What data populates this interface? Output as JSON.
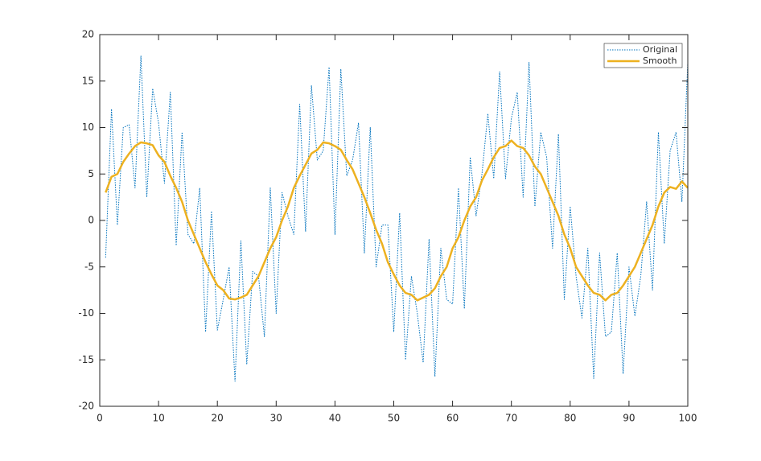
{
  "chart_data": {
    "type": "line",
    "x": [
      1,
      2,
      3,
      4,
      5,
      6,
      7,
      8,
      9,
      10,
      11,
      12,
      13,
      14,
      15,
      16,
      17,
      18,
      19,
      20,
      21,
      22,
      23,
      24,
      25,
      26,
      27,
      28,
      29,
      30,
      31,
      32,
      33,
      34,
      35,
      36,
      37,
      38,
      39,
      40,
      41,
      42,
      43,
      44,
      45,
      46,
      47,
      48,
      49,
      50,
      51,
      52,
      53,
      54,
      55,
      56,
      57,
      58,
      59,
      60,
      61,
      62,
      63,
      64,
      65,
      66,
      67,
      68,
      69,
      70,
      71,
      72,
      73,
      74,
      75,
      76,
      77,
      78,
      79,
      80,
      81,
      82,
      83,
      84,
      85,
      86,
      87,
      88,
      89,
      90,
      91,
      92,
      93,
      94,
      95,
      96,
      97,
      98,
      99,
      100
    ],
    "series": [
      {
        "name": "Original",
        "color": "#0072BD",
        "style": "dotted",
        "values": [
          -4,
          12,
          -0.5,
          10,
          10.3,
          3.5,
          17.7,
          2.5,
          14.2,
          10.5,
          4,
          13.8,
          -2.7,
          9.5,
          -1.5,
          -2.5,
          3.5,
          -12,
          1,
          -11.8,
          -8.5,
          -5,
          -17.3,
          -2.2,
          -15.5,
          -5.5,
          -6,
          -12.5,
          3.5,
          -10,
          3,
          0.5,
          -1.5,
          12.5,
          -1.2,
          14.5,
          6.5,
          7.5,
          16.5,
          -1.5,
          16.3,
          4.8,
          6.5,
          10.5,
          -3.5,
          10,
          -5,
          -0.5,
          -0.5,
          -12,
          0.8,
          -15,
          -6,
          -10,
          -15.3,
          -2,
          -16.8,
          -3,
          -8.5,
          -9,
          3.5,
          -9.5,
          6.8,
          0.5,
          5,
          11.5,
          4.5,
          16,
          4.5,
          11,
          13.8,
          2.5,
          17,
          1.5,
          9.5,
          6.8,
          -3,
          9.3,
          -8.5,
          1.5,
          -6,
          -10.5,
          -3,
          -17,
          -3.5,
          -12.5,
          -12,
          -3.5,
          -16.5,
          -5,
          -10.3,
          -6,
          2,
          -7.5,
          9.5,
          -2.5,
          7.5,
          9.5,
          2,
          17
        ]
      },
      {
        "name": "Smooth",
        "color": "#EDB120",
        "style": "solid",
        "values": [
          3,
          4.7,
          5,
          6.3,
          7.2,
          8,
          8.4,
          8.3,
          8.1,
          7,
          6.3,
          4.8,
          3.5,
          2,
          0,
          -1.5,
          -3,
          -4.5,
          -5.8,
          -7,
          -7.5,
          -8.4,
          -8.5,
          -8.3,
          -8,
          -7,
          -6,
          -4.5,
          -3,
          -1.8,
          0,
          1.5,
          3.5,
          4.8,
          6,
          7.2,
          7.6,
          8.4,
          8.3,
          8,
          7.6,
          6.5,
          5.5,
          4,
          2.5,
          0.8,
          -1,
          -2.5,
          -4.5,
          -5.8,
          -7,
          -7.8,
          -8,
          -8.6,
          -8.3,
          -8,
          -7.3,
          -6,
          -5,
          -3,
          -1.8,
          0,
          1.5,
          2.5,
          4.3,
          5.5,
          6.8,
          7.8,
          8,
          8.6,
          8,
          7.8,
          7,
          5.8,
          5,
          3.5,
          2,
          0.5,
          -1.5,
          -3,
          -5,
          -6,
          -7,
          -7.8,
          -8,
          -8.6,
          -8,
          -7.8,
          -7,
          -6,
          -5,
          -3.5,
          -2,
          -0.5,
          1.5,
          3,
          3.6,
          3.4,
          4.2,
          3.5
        ]
      }
    ],
    "xlim": [
      0,
      100
    ],
    "xticks": [
      0,
      10,
      20,
      30,
      40,
      50,
      60,
      70,
      80,
      90,
      100
    ],
    "ylim": [
      -20,
      20
    ],
    "yticks": [
      -20,
      -15,
      -10,
      -5,
      0,
      5,
      10,
      15,
      20
    ],
    "grid": false,
    "legend": "northeast"
  }
}
